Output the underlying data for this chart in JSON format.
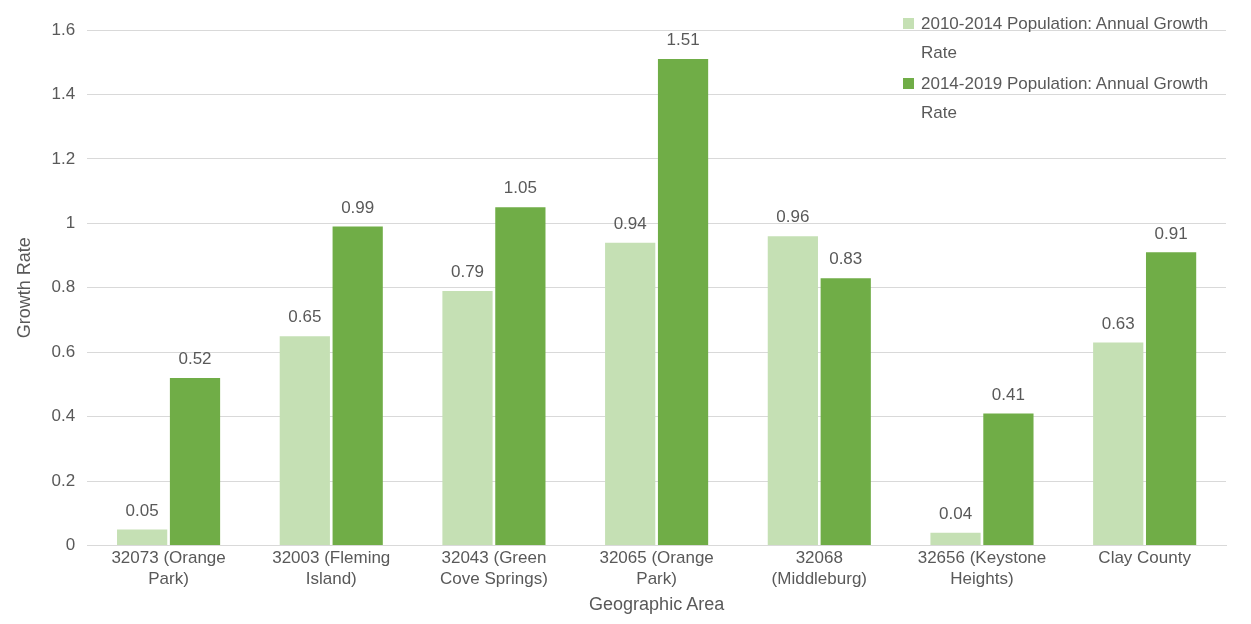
{
  "chart_data": {
    "type": "bar",
    "xlabel": "Geographic Area",
    "ylabel": "Growth Rate",
    "categories": [
      "32073 (Orange Park)",
      "32003 (Fleming Island)",
      "32043 (Green Cove Springs)",
      "32065 (Orange Park)",
      "32068 (Middleburg)",
      "32656 (Keystone Heights)",
      "Clay County"
    ],
    "series": [
      {
        "name": "2010-2014 Population: Annual Growth Rate",
        "color": "#c5e0b4",
        "values": [
          0.05,
          0.65,
          0.79,
          0.94,
          0.96,
          0.04,
          0.63
        ]
      },
      {
        "name": "2014-2019 Population: Annual Growth Rate",
        "color": "#70ad47",
        "values": [
          0.52,
          0.99,
          1.05,
          1.51,
          0.83,
          0.41,
          0.91
        ]
      }
    ],
    "ylim": [
      0,
      1.6
    ],
    "yticks": [
      0,
      0.2,
      0.4,
      0.6,
      0.8,
      1,
      1.2,
      1.4,
      1.6
    ],
    "grid": "y",
    "legend": "top right",
    "data_labels": true
  }
}
